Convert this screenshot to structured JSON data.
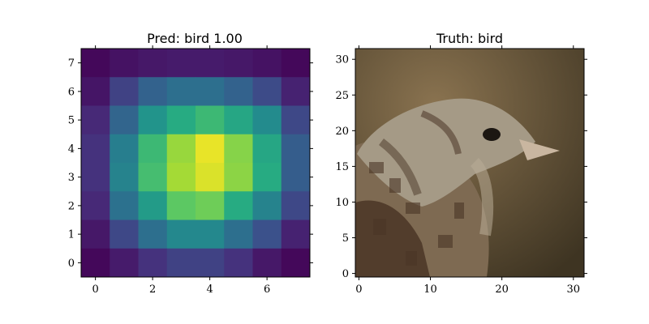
{
  "chart_data": [
    {
      "type": "heatmap",
      "title": "Pred: bird 1.00",
      "xlabel": "",
      "ylabel": "",
      "xlim": [
        -0.5,
        7.5
      ],
      "ylim": [
        7.5,
        -0.5
      ],
      "x_ticks": [
        0,
        2,
        4,
        6
      ],
      "y_ticks": [
        0,
        1,
        2,
        3,
        4,
        5,
        6,
        7
      ],
      "colormap": "viridis",
      "value_range": [
        0,
        1
      ],
      "grid": false,
      "values": [
        [
          0.02,
          0.05,
          0.07,
          0.08,
          0.08,
          0.07,
          0.05,
          0.02
        ],
        [
          0.06,
          0.2,
          0.32,
          0.37,
          0.37,
          0.32,
          0.23,
          0.1
        ],
        [
          0.12,
          0.33,
          0.52,
          0.62,
          0.68,
          0.6,
          0.48,
          0.22
        ],
        [
          0.15,
          0.43,
          0.68,
          0.85,
          0.97,
          0.82,
          0.6,
          0.3
        ],
        [
          0.15,
          0.45,
          0.7,
          0.87,
          0.95,
          0.83,
          0.62,
          0.3
        ],
        [
          0.12,
          0.38,
          0.55,
          0.75,
          0.78,
          0.62,
          0.45,
          0.22
        ],
        [
          0.07,
          0.22,
          0.37,
          0.47,
          0.47,
          0.37,
          0.25,
          0.1
        ],
        [
          0.02,
          0.08,
          0.15,
          0.2,
          0.2,
          0.15,
          0.07,
          0.02
        ]
      ]
    },
    {
      "type": "heatmap",
      "subtype": "image",
      "title": "Truth: bird",
      "xlabel": "",
      "ylabel": "",
      "xlim": [
        -0.5,
        31.5
      ],
      "ylim": [
        31.5,
        -0.5
      ],
      "x_ticks": [
        0,
        10,
        20,
        30
      ],
      "y_ticks": [
        0,
        5,
        10,
        15,
        20,
        25,
        30
      ],
      "grid": false,
      "image_colors": {
        "background_light": "#8a7350",
        "background_dark": "#3e3422",
        "feather_light": "#a59a86",
        "feather_mid": "#7e6a52",
        "feather_dark": "#4a3526",
        "eye": "#1c1712",
        "beak": "#c9b6a0"
      }
    }
  ]
}
